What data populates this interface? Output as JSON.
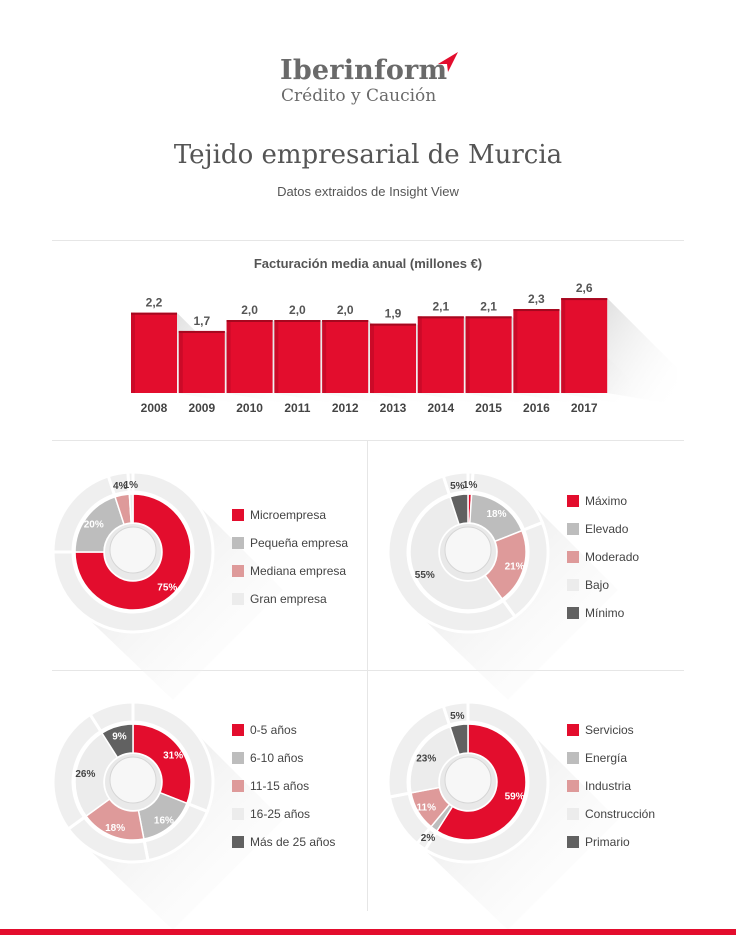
{
  "brand": {
    "name": "Iberinform",
    "tagline": "Crédito y Caución",
    "accent": "#e30d2d"
  },
  "title": "Tejido empresarial de Murcia",
  "subtitle": "Datos extraidos de Insight View",
  "chart_data": [
    {
      "type": "bar",
      "title": "Facturación media anual (millones €)",
      "categories": [
        "2008",
        "2009",
        "2010",
        "2011",
        "2012",
        "2013",
        "2014",
        "2015",
        "2016",
        "2017"
      ],
      "values": [
        2.2,
        1.7,
        2.0,
        2.0,
        2.0,
        1.9,
        2.1,
        2.1,
        2.3,
        2.6
      ],
      "value_labels": [
        "2,2",
        "1,7",
        "2,0",
        "2,0",
        "2,0",
        "1,9",
        "2,1",
        "2,1",
        "2,3",
        "2,6"
      ],
      "color": "#e30d2d"
    },
    {
      "type": "pie",
      "categories": [
        "Microempresa",
        "Pequeña empresa",
        "Mediana empresa",
        "Gran empresa"
      ],
      "values": [
        75,
        20,
        4,
        1
      ],
      "value_labels": [
        "75%",
        "20%",
        "4%",
        "1%"
      ],
      "colors": [
        "#e30d2d",
        "#bdbdbd",
        "#de9a9a",
        "#ececec"
      ]
    },
    {
      "type": "pie",
      "categories": [
        "Máximo",
        "Elevado",
        "Moderado",
        "Bajo",
        "Mínimo"
      ],
      "values": [
        1,
        18,
        21,
        55,
        5
      ],
      "value_labels": [
        "1%",
        "18%",
        "21%",
        "55%",
        "5%"
      ],
      "colors": [
        "#e30d2d",
        "#bdbdbd",
        "#de9a9a",
        "#ececec",
        "#616161"
      ]
    },
    {
      "type": "pie",
      "categories": [
        "0-5 años",
        "6-10 años",
        "11-15 años",
        "16-25 años",
        "Más de 25 años"
      ],
      "values": [
        31,
        16,
        18,
        26,
        9
      ],
      "value_labels": [
        "31%",
        "16%",
        "18%",
        "26%",
        "9%"
      ],
      "colors": [
        "#e30d2d",
        "#bdbdbd",
        "#de9a9a",
        "#ececec",
        "#616161"
      ]
    },
    {
      "type": "pie",
      "categories": [
        "Servicios",
        "Energía",
        "Industria",
        "Construcción",
        "Primario"
      ],
      "values": [
        59,
        2,
        11,
        23,
        5
      ],
      "value_labels": [
        "59%",
        "2%",
        "11%",
        "23%",
        "5%"
      ],
      "colors": [
        "#e30d2d",
        "#bdbdbd",
        "#de9a9a",
        "#ececec",
        "#616161"
      ]
    }
  ]
}
